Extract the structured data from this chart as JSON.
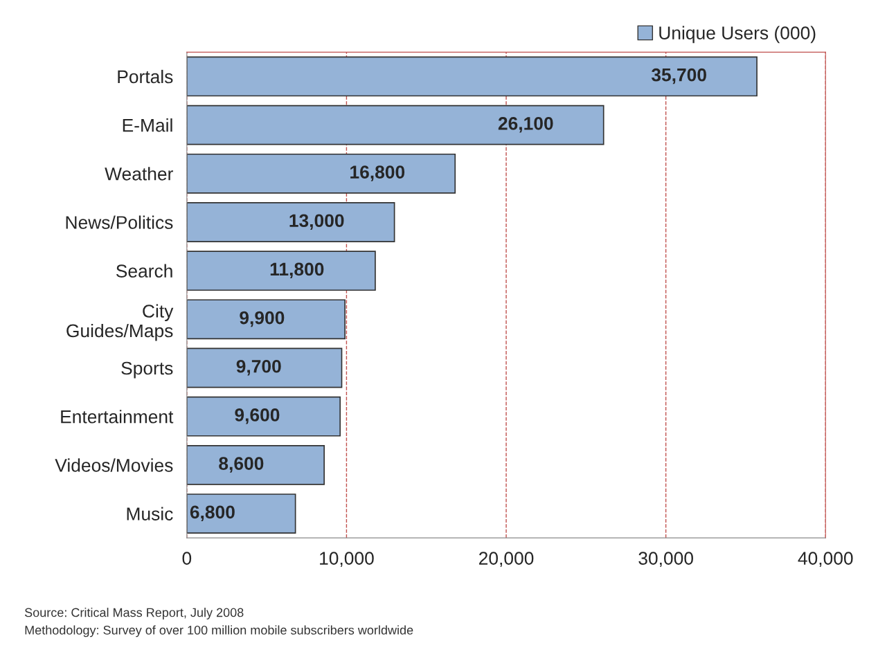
{
  "chart_data": {
    "type": "bar",
    "orientation": "horizontal",
    "categories": [
      "Portals",
      "E-Mail",
      "Weather",
      "News/Politics",
      "Search",
      "City\nGuides/Maps",
      "Sports",
      "Entertainment",
      "Videos/Movies",
      "Music"
    ],
    "series": [
      {
        "name": "Unique Users (000)",
        "color": "#95b3d7",
        "values": [
          35700,
          26100,
          16800,
          13000,
          11800,
          9900,
          9700,
          9600,
          8600,
          6800
        ],
        "value_labels": [
          "35,700",
          "26,100",
          "16,800",
          "13,000",
          "11,800",
          "9,900",
          "9,700",
          "9,600",
          "8,600",
          "6,800"
        ]
      }
    ],
    "xlim": [
      0,
      40000
    ],
    "xticks": [
      0,
      {
        "value": 10000,
        "label": "10,000"
      },
      {
        "value": 20000,
        "label": "20,000"
      },
      {
        "value": 30000,
        "label": "30,000"
      },
      {
        "value": 40000,
        "label": "40,000"
      }
    ],
    "grid": "x",
    "legend": "top right",
    "annotations": [
      "Source: Critical Mass Report, July 2008",
      "Methodology: Survey of over 100 million mobile subscribers worldwide"
    ]
  }
}
